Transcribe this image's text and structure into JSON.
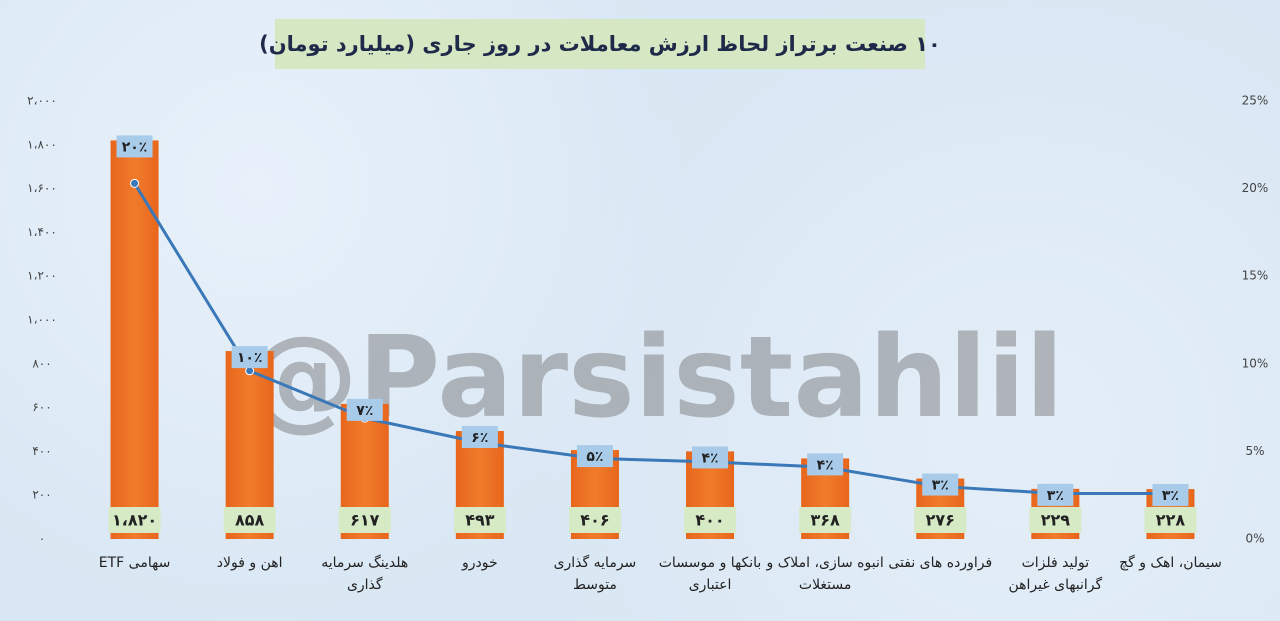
{
  "chart_data": {
    "type": "bar",
    "title": "۱۰ صنعت برتراز لحاظ ارزش معاملات در روز جاری (میلیارد تومان)",
    "watermark": "@Parsistahlil",
    "categories": [
      "سهامی ETF",
      "اهن و فولاد",
      "هلدینگ سرمایه\nگذاری",
      "خودرو",
      "سرمایه گذاری\nمتوسط",
      "بانکها و موسسات\nاعتباری",
      "انبوه سازی، املاک و\nمستغلات",
      "فراورده های نفتی",
      "تولید فلزات\nگرانبهای غیراهن",
      "سیمان، اهک و گچ"
    ],
    "series": [
      {
        "type": "bar",
        "color": "#f07b2b",
        "label_color": "#d7eac6",
        "values": [
          1820,
          858,
          617,
          493,
          406,
          400,
          368,
          276,
          229,
          228
        ],
        "value_labels": [
          "۱،۸۲۰",
          "۸۵۸",
          "۶۱۷",
          "۴۹۳",
          "۴۰۶",
          "۴۰۰",
          "۳۶۸",
          "۲۷۶",
          "۲۲۹",
          "۲۲۸"
        ]
      },
      {
        "type": "line",
        "axis": "y2",
        "color": "#3a78b8",
        "label_color": "#a9cbea",
        "values": [
          20.3,
          9.6,
          6.9,
          5.5,
          4.6,
          4.4,
          4.1,
          3.0,
          2.6,
          2.6
        ],
        "value_labels": [
          "۲۰٪",
          "۱۰٪",
          "۷٪",
          "۶٪",
          "۵٪",
          "۴٪",
          "۴٪",
          "۳٪",
          "۳٪",
          "۳٪"
        ]
      }
    ],
    "ylim": [
      0,
      2000
    ],
    "yticks": [
      {
        "value": 0,
        "label": "۰"
      },
      {
        "value": 200,
        "label": "۲۰۰"
      },
      {
        "value": 400,
        "label": "۴۰۰"
      },
      {
        "value": 600,
        "label": "۶۰۰"
      },
      {
        "value": 800,
        "label": "۸۰۰"
      },
      {
        "value": 1000,
        "label": "۱،۰۰۰"
      },
      {
        "value": 1200,
        "label": "۱،۲۰۰"
      },
      {
        "value": 1400,
        "label": "۱،۴۰۰"
      },
      {
        "value": 1600,
        "label": "۱،۶۰۰"
      },
      {
        "value": 1800,
        "label": "۱،۸۰۰"
      },
      {
        "value": 2000,
        "label": "۲،۰۰۰"
      }
    ],
    "y2lim": [
      0,
      25
    ],
    "y2ticks": [
      {
        "value": 0,
        "label": "0%"
      },
      {
        "value": 5,
        "label": "5%"
      },
      {
        "value": 10,
        "label": "10%"
      },
      {
        "value": 15,
        "label": "15%"
      },
      {
        "value": 20,
        "label": "20%"
      },
      {
        "value": 25,
        "label": "25%"
      }
    ],
    "grid": false
  }
}
